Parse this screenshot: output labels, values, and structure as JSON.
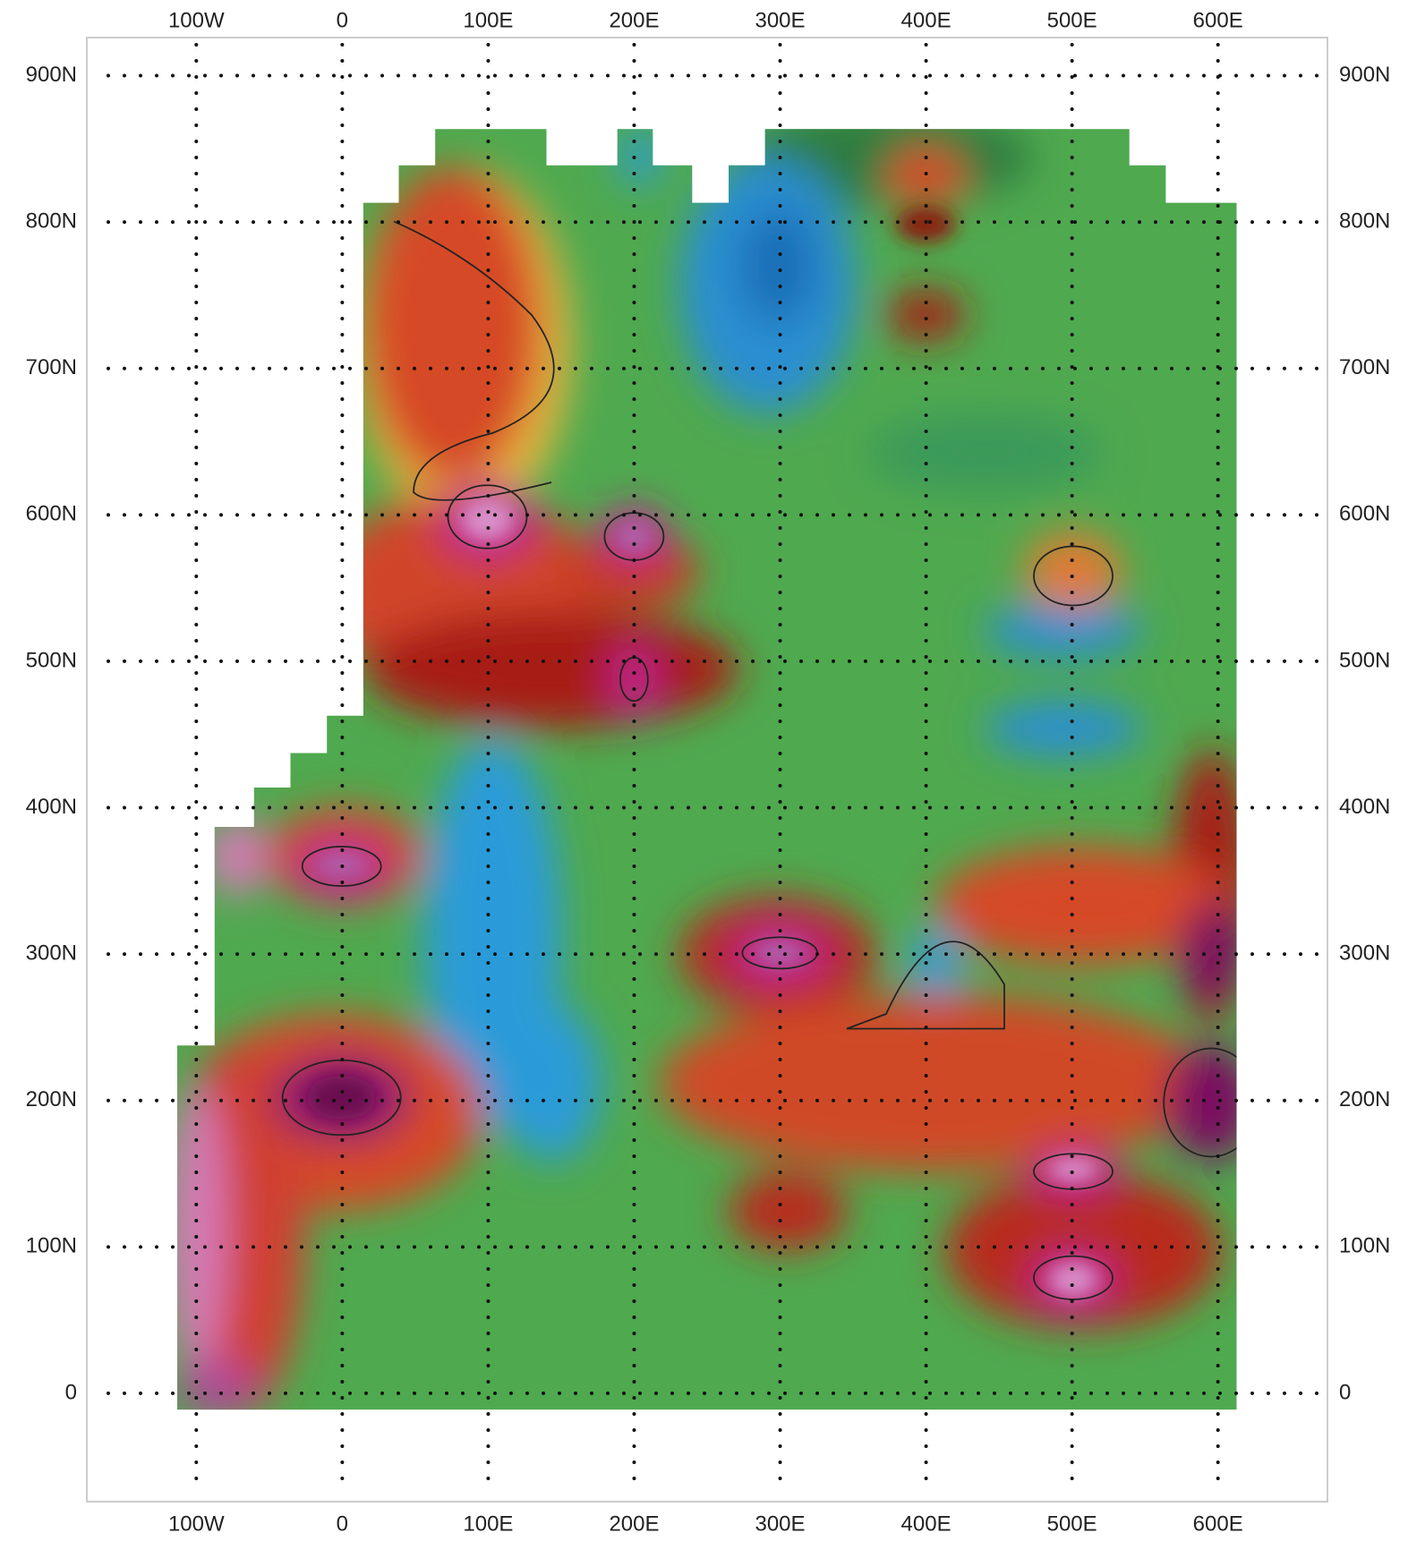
{
  "chart_data": {
    "type": "contour",
    "xticks": [
      {
        "value": -100,
        "label": "100W"
      },
      0,
      {
        "value": 100,
        "label": "100E"
      },
      {
        "value": 200,
        "label": "200E"
      },
      {
        "value": 300,
        "label": "300E"
      },
      {
        "value": 400,
        "label": "400E"
      },
      {
        "value": 500,
        "label": "500E"
      },
      {
        "value": 600,
        "label": "600E"
      }
    ],
    "yticks": [
      0,
      {
        "value": 100,
        "label": "100N"
      },
      {
        "value": 200,
        "label": "200N"
      },
      {
        "value": 300,
        "label": "300N"
      },
      {
        "value": 400,
        "label": "400N"
      },
      {
        "value": 500,
        "label": "500N"
      },
      {
        "value": 600,
        "label": "600N"
      },
      {
        "value": 700,
        "label": "700N"
      },
      {
        "value": 800,
        "label": "800N"
      },
      {
        "value": 900,
        "label": "900N"
      }
    ],
    "xlim": [
      -175,
      675
    ],
    "ylim": [
      -74,
      926
    ],
    "grid": true
  }
}
